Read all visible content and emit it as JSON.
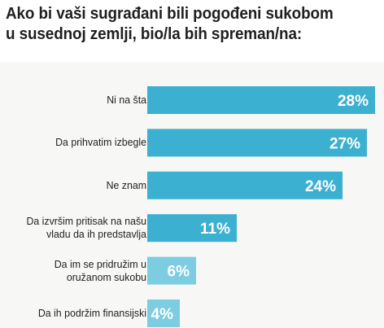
{
  "title_lines": [
    "Ako bi vaši sugrađani bili pogođeni sukobom",
    "u susednoj zemlji, bio/la bih spreman/na:"
  ],
  "colors": {
    "bar": "#3cb0d0",
    "bar_light": "#7ccce2",
    "value_text": "#ffffff",
    "label_text": "#1f1f1f",
    "background": "#f7f7f6"
  },
  "chart_data": {
    "type": "bar",
    "orientation": "horizontal",
    "title": "Ako bi vaši sugrađani bili pogođeni sukobom u susednoj zemlji, bio/la bih spreman/na:",
    "categories": [
      "Ni na šta",
      "Da prihvatim izbegle",
      "Ne znam",
      "Da izvršim pritisak na našu\nvladu da ih predstavlja",
      "Da im se pridružim u\noružanom sukobu",
      "Da ih podržim finansijski"
    ],
    "values": [
      28,
      27,
      24,
      11,
      6,
      4
    ],
    "value_labels": [
      "28%",
      "27%",
      "24%",
      "11%",
      "6%",
      "4%"
    ],
    "unit": "%",
    "xlim": [
      0,
      28
    ],
    "grid": false,
    "legend": "none"
  }
}
